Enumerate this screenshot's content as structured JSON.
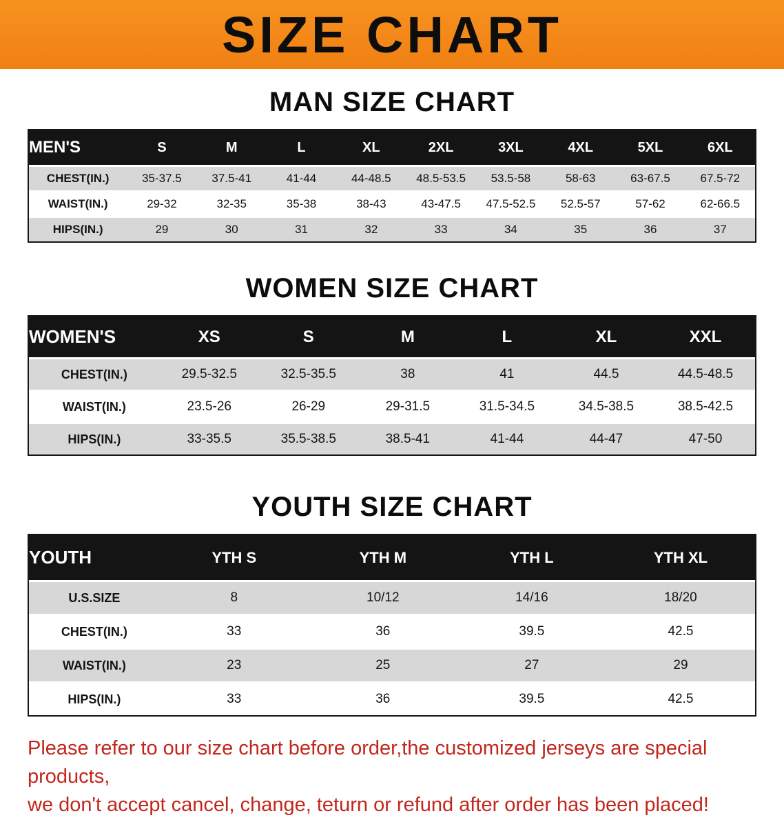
{
  "banner": {
    "title": "SIZE CHART"
  },
  "colors": {
    "banner_bg": "#f58a1d",
    "table_header_bg": "#141414",
    "row_alt_bg": "#d7d7d7",
    "footer_text": "#c2261c"
  },
  "men": {
    "heading": "MAN SIZE CHART",
    "table": {
      "header": [
        "MEN'S",
        "S",
        "M",
        "L",
        "XL",
        "2XL",
        "3XL",
        "4XL",
        "5XL",
        "6XL"
      ],
      "rows": [
        {
          "label": "CHEST(IN.)",
          "values": [
            "35-37.5",
            "37.5-41",
            "41-44",
            "44-48.5",
            "48.5-53.5",
            "53.5-58",
            "58-63",
            "63-67.5",
            "67.5-72"
          ]
        },
        {
          "label": "WAIST(IN.)",
          "values": [
            "29-32",
            "32-35",
            "35-38",
            "38-43",
            "43-47.5",
            "47.5-52.5",
            "52.5-57",
            "57-62",
            "62-66.5"
          ]
        },
        {
          "label": "HIPS(IN.)",
          "values": [
            "29",
            "30",
            "31",
            "32",
            "33",
            "34",
            "35",
            "36",
            "37"
          ]
        }
      ]
    }
  },
  "women": {
    "heading": "WOMEN SIZE CHART",
    "table": {
      "header": [
        "WOMEN'S",
        "XS",
        "S",
        "M",
        "L",
        "XL",
        "XXL"
      ],
      "rows": [
        {
          "label": "CHEST(IN.)",
          "values": [
            "29.5-32.5",
            "32.5-35.5",
            "38",
            "41",
            "44.5",
            "44.5-48.5"
          ]
        },
        {
          "label": "WAIST(IN.)",
          "values": [
            "23.5-26",
            "26-29",
            "29-31.5",
            "31.5-34.5",
            "34.5-38.5",
            "38.5-42.5"
          ]
        },
        {
          "label": "HIPS(IN.)",
          "values": [
            "33-35.5",
            "35.5-38.5",
            "38.5-41",
            "41-44",
            "44-47",
            "47-50"
          ]
        }
      ]
    }
  },
  "youth": {
    "heading": "YOUTH SIZE CHART",
    "table": {
      "header": [
        "YOUTH",
        "YTH S",
        "YTH M",
        "YTH L",
        "YTH XL"
      ],
      "rows": [
        {
          "label": "U.S.SIZE",
          "values": [
            "8",
            "10/12",
            "14/16",
            "18/20"
          ]
        },
        {
          "label": "CHEST(IN.)",
          "values": [
            "33",
            "36",
            "39.5",
            "42.5"
          ]
        },
        {
          "label": "WAIST(IN.)",
          "values": [
            "23",
            "25",
            "27",
            "29"
          ]
        },
        {
          "label": "HIPS(IN.)",
          "values": [
            "33",
            "36",
            "39.5",
            "42.5"
          ]
        }
      ]
    }
  },
  "footer": {
    "line1": "Please refer to our size chart before order,the customized jerseys are special products,",
    "line2": "we don't accept cancel, change, teturn or refund after order has been placed!"
  }
}
